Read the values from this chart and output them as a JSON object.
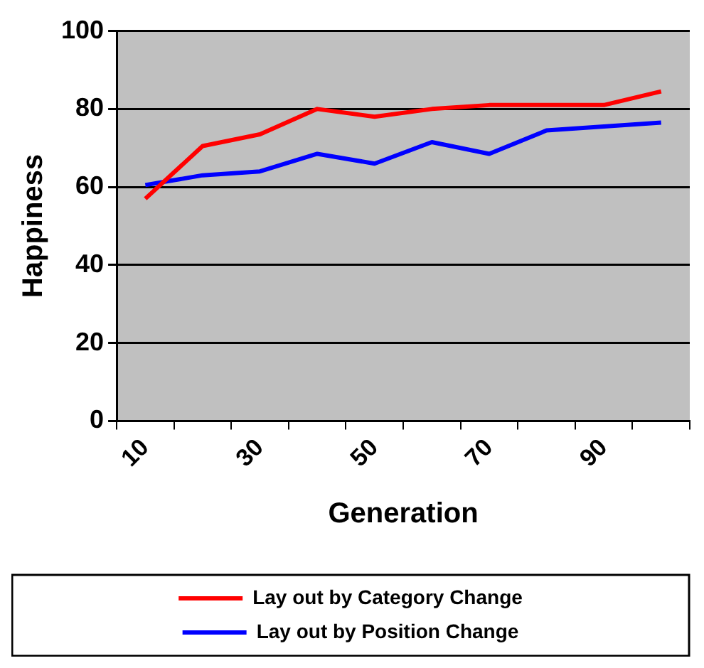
{
  "chart_data": {
    "type": "line",
    "xlabel": "Generation",
    "ylabel": "Happiness",
    "categories": [
      "10",
      null,
      "30",
      null,
      "50",
      null,
      "70",
      null,
      "90",
      null
    ],
    "series": [
      {
        "name": "Lay out by Category Change",
        "color": "#ff0000",
        "values": [
          57,
          70.5,
          73.5,
          80,
          78,
          80,
          81,
          81,
          81,
          84.5
        ]
      },
      {
        "name": "Lay out by Position Change",
        "color": "#0000ff",
        "values": [
          60.5,
          63,
          64,
          68.5,
          66,
          71.5,
          68.5,
          74.5,
          75.5,
          76.5
        ]
      }
    ],
    "ylim": [
      0,
      100
    ],
    "yticks": [
      0,
      20,
      40,
      60,
      80,
      100
    ],
    "grid": "y",
    "legend": "bottom",
    "marker": "none",
    "line_style": "solid"
  }
}
